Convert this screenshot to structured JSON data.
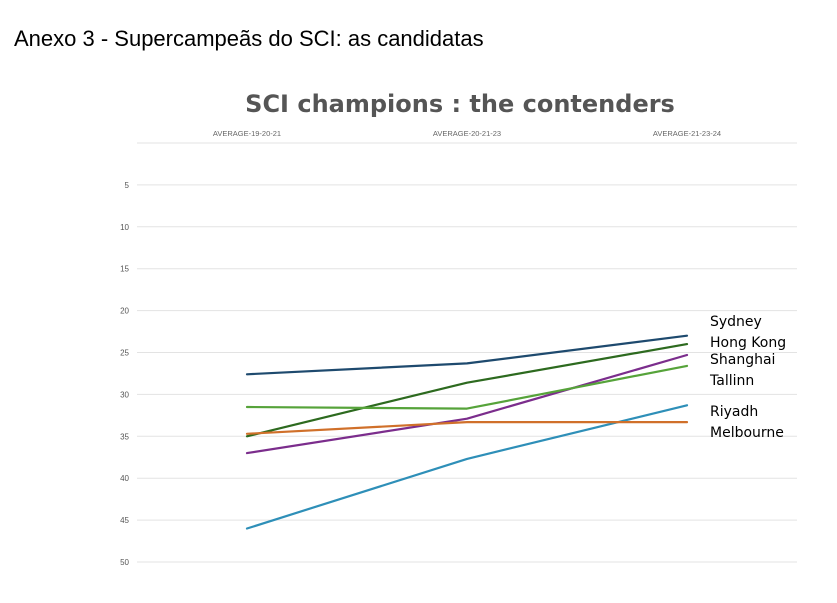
{
  "page": {
    "heading": "Anexo 3 - Supercampeãs do SCI: as candidatas"
  },
  "chart_data": {
    "type": "line",
    "title": "SCI champions : the contenders",
    "categories": [
      "AVERAGE-19-20-21",
      "AVERAGE-20-21-23",
      "AVERAGE-21-23-24"
    ],
    "y_axis": {
      "inverted": true,
      "range": [
        0,
        50
      ],
      "ticks": [
        5,
        10,
        15,
        20,
        25,
        30,
        35,
        40,
        45,
        50
      ]
    },
    "grid": true,
    "legend": "labels at line ends (right)",
    "series": [
      {
        "name": "Sydney",
        "values": [
          27.6,
          26.3,
          23.0
        ],
        "color": "#1e4a6e"
      },
      {
        "name": "Hong Kong",
        "values": [
          35.0,
          28.6,
          24.0
        ],
        "color": "#2d6a1f"
      },
      {
        "name": "Shanghai",
        "values": [
          37.0,
          32.9,
          25.3
        ],
        "color": "#7b2d8c"
      },
      {
        "name": "Tallinn",
        "values": [
          31.5,
          31.7,
          26.6
        ],
        "color": "#56a33a"
      },
      {
        "name": "Riyadh",
        "values": [
          46.0,
          37.7,
          31.3
        ],
        "color": "#2e8fb8"
      },
      {
        "name": "Melbourne",
        "values": [
          34.7,
          33.3,
          33.3
        ],
        "color": "#d0702a"
      }
    ]
  }
}
